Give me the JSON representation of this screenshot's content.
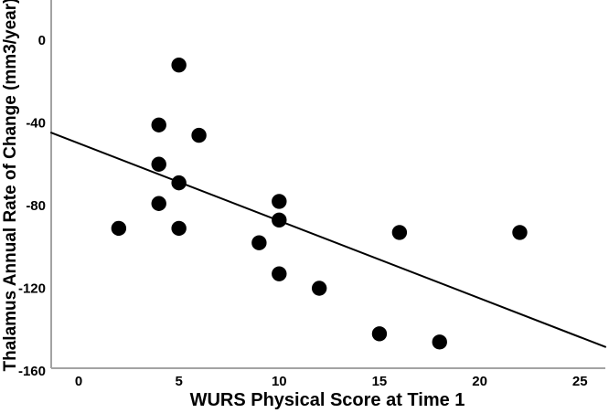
{
  "figure": {
    "background_color": "#ffffff"
  },
  "chart_data": {
    "type": "scatter",
    "title": "",
    "xlabel": "WURS Physical Score at Time 1",
    "ylabel": "Thalamus Annual Rate of Change (mm3/year)",
    "xlim": [
      -1.4,
      26.5
    ],
    "ylim": [
      -160,
      19
    ],
    "x_ticks": [
      0,
      5,
      10,
      15,
      20,
      25
    ],
    "y_ticks": [
      0,
      -40,
      -80,
      -120,
      -160
    ],
    "grid": false,
    "legend": false,
    "marker": "filled-circle",
    "point_color": "#000000",
    "trendline_color": "#000000",
    "axis_color": "#a3a3a3",
    "points": [
      [
        5,
        -12
      ],
      [
        4,
        -41
      ],
      [
        6,
        -46
      ],
      [
        4,
        -60
      ],
      [
        5,
        -69
      ],
      [
        4,
        -79
      ],
      [
        2,
        -91
      ],
      [
        5,
        -91
      ],
      [
        10,
        -78
      ],
      [
        10,
        -87
      ],
      [
        9,
        -98
      ],
      [
        10,
        -113
      ],
      [
        12,
        -120
      ],
      [
        16,
        -93
      ],
      [
        22,
        -93
      ],
      [
        15,
        -142
      ],
      [
        18,
        -146
      ]
    ],
    "trendline": {
      "x1": -1.4,
      "y1": -44.6,
      "x2": 26.3,
      "y2": -148.5,
      "equation_estimate": "y = -49.8 - 3.76x"
    }
  }
}
